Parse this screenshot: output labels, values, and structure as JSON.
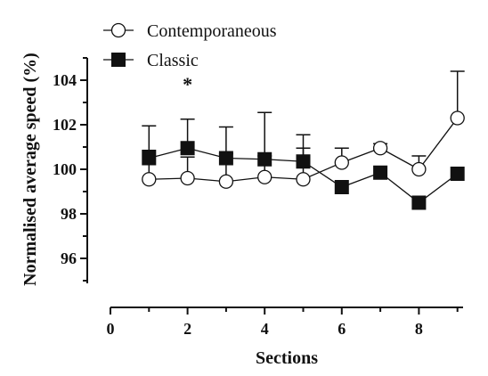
{
  "chart_data": {
    "type": "line",
    "xlabel": "Sections",
    "ylabel": "Normalised average speed (%)",
    "xlim": [
      0,
      9.5
    ],
    "ylim": [
      94,
      105
    ],
    "x_ticks": [
      0,
      2,
      4,
      6,
      8
    ],
    "y_ticks": [
      96,
      98,
      100,
      102,
      104
    ],
    "legend_position": "top-left",
    "grid": false,
    "x": [
      1,
      2,
      3,
      4,
      5,
      6,
      7,
      8,
      9
    ],
    "series": [
      {
        "name": "Contemporaneous",
        "marker": "open-circle",
        "color": "#111111",
        "values": [
          99.55,
          99.6,
          99.45,
          99.65,
          99.55,
          100.3,
          100.95,
          100.0,
          102.3
        ],
        "error_up": [
          1.3,
          0.95,
          1.25,
          0.95,
          1.4,
          0.65,
          0.2,
          0.6,
          2.1
        ],
        "error_down": [
          1.3,
          0.95,
          1.25,
          0.95,
          1.4,
          0.65,
          0.2,
          0.6,
          2.1
        ]
      },
      {
        "name": "Classic",
        "marker": "filled-square",
        "color": "#111111",
        "values": [
          100.5,
          100.95,
          100.5,
          100.45,
          100.35,
          99.2,
          99.85,
          98.5,
          99.8
        ],
        "error_up": [
          1.45,
          1.3,
          1.4,
          2.1,
          1.2,
          0.0,
          0.0,
          0.0,
          0.0
        ],
        "error_down": [
          1.45,
          1.3,
          1.4,
          2.1,
          1.2,
          0.0,
          0.0,
          0.0,
          0.0
        ]
      }
    ],
    "annotations": [
      {
        "text": "*",
        "x": 2,
        "y": 104
      }
    ]
  }
}
